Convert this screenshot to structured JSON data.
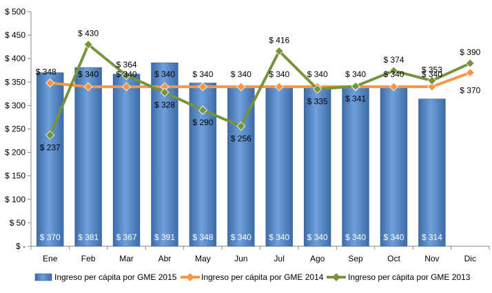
{
  "chart_data": {
    "type": "bar",
    "categories": [
      "Ene",
      "Feb",
      "Mar",
      "Abr",
      "May",
      "Jun",
      "Jul",
      "Ago",
      "Sep",
      "Oct",
      "Nov",
      "Dic"
    ],
    "ylim": [
      0,
      500
    ],
    "ytick_values": [
      0,
      50,
      100,
      150,
      200,
      250,
      300,
      350,
      400,
      450,
      500
    ],
    "ytick_labels": [
      "$ -",
      "$ 50",
      "$ 100",
      "$ 150",
      "$ 200",
      "$ 250",
      "$ 300",
      "$ 350",
      "$ 400",
      "$ 450",
      "$ 500"
    ],
    "grid": false,
    "legend_position": "bottom",
    "series": [
      {
        "name": "Ingreso per cápita por GME 2015",
        "type": "bar",
        "color": "#4F81BD",
        "values": [
          370,
          381,
          367,
          391,
          348,
          340,
          340,
          340,
          340,
          340,
          314,
          null
        ],
        "labels": [
          "$ 370",
          "$ 381",
          "$ 367",
          "$ 391",
          "$ 348",
          "$ 340",
          "$ 340",
          "$ 340",
          "$ 340",
          "$ 340",
          "$ 314",
          ""
        ]
      },
      {
        "name": "Ingreso per cápita por GME 2014",
        "type": "line",
        "color": "#F79646",
        "values": [
          348,
          340,
          340,
          340,
          340,
          340,
          340,
          340,
          340,
          340,
          340,
          370
        ],
        "labels": [
          "$ 348",
          "$ 340",
          "$ 340",
          "$ 340",
          "$ 340",
          "$ 340",
          "$ 340",
          "$ 340",
          "$ 340",
          "$ 340",
          "$ 340",
          "$ 370"
        ]
      },
      {
        "name": "Ingreso per cápita por GME 2013",
        "type": "line",
        "color": "#77933C",
        "values": [
          237,
          430,
          364,
          328,
          290,
          256,
          416,
          335,
          341,
          374,
          353,
          390
        ],
        "labels": [
          "$ 237",
          "$ 430",
          "$ 364",
          "$ 328",
          "$ 290",
          "$ 256",
          "$ 416",
          "$ 335",
          "$ 341",
          "$ 374",
          "$ 353",
          "$ 390"
        ]
      }
    ]
  }
}
